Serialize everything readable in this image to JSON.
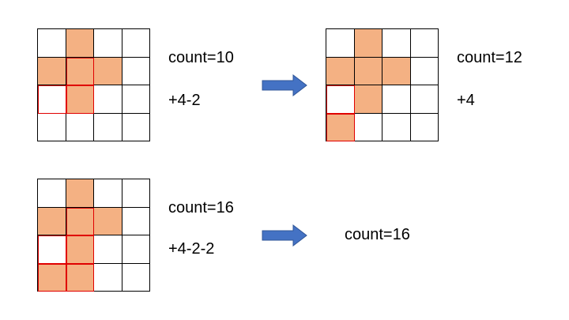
{
  "colors": {
    "filled": "#f4b183",
    "empty": "#ffffff",
    "line": "#000000",
    "highlight": "#e00000",
    "arrow": "#4472c4"
  },
  "panels": [
    {
      "count_text": "count=10",
      "delta_text": "+4-2",
      "cells": [
        [
          0,
          1,
          0,
          0
        ],
        [
          1,
          1,
          1,
          0
        ],
        [
          0,
          1,
          0,
          0
        ],
        [
          0,
          0,
          0,
          0
        ]
      ],
      "red": [
        [
          0,
          0,
          0,
          0
        ],
        [
          0,
          1,
          0,
          0
        ],
        [
          1,
          1,
          0,
          0
        ],
        [
          0,
          0,
          0,
          0
        ]
      ]
    },
    {
      "count_text": "count=12",
      "delta_text": "+4",
      "cells": [
        [
          0,
          1,
          0,
          0
        ],
        [
          1,
          1,
          1,
          0
        ],
        [
          0,
          1,
          0,
          0
        ],
        [
          1,
          0,
          0,
          0
        ]
      ],
      "red": [
        [
          0,
          0,
          0,
          0
        ],
        [
          0,
          0,
          0,
          0
        ],
        [
          1,
          0,
          0,
          0
        ],
        [
          1,
          0,
          0,
          0
        ]
      ]
    },
    {
      "count_text": "count=16",
      "delta_text": "+4-2-2",
      "cells": [
        [
          0,
          1,
          0,
          0
        ],
        [
          1,
          1,
          1,
          0
        ],
        [
          0,
          1,
          0,
          0
        ],
        [
          1,
          1,
          0,
          0
        ]
      ],
      "red": [
        [
          0,
          0,
          0,
          0
        ],
        [
          0,
          1,
          0,
          0
        ],
        [
          1,
          1,
          0,
          0
        ],
        [
          1,
          1,
          0,
          0
        ]
      ]
    }
  ],
  "result": {
    "count_text": "count=16"
  }
}
